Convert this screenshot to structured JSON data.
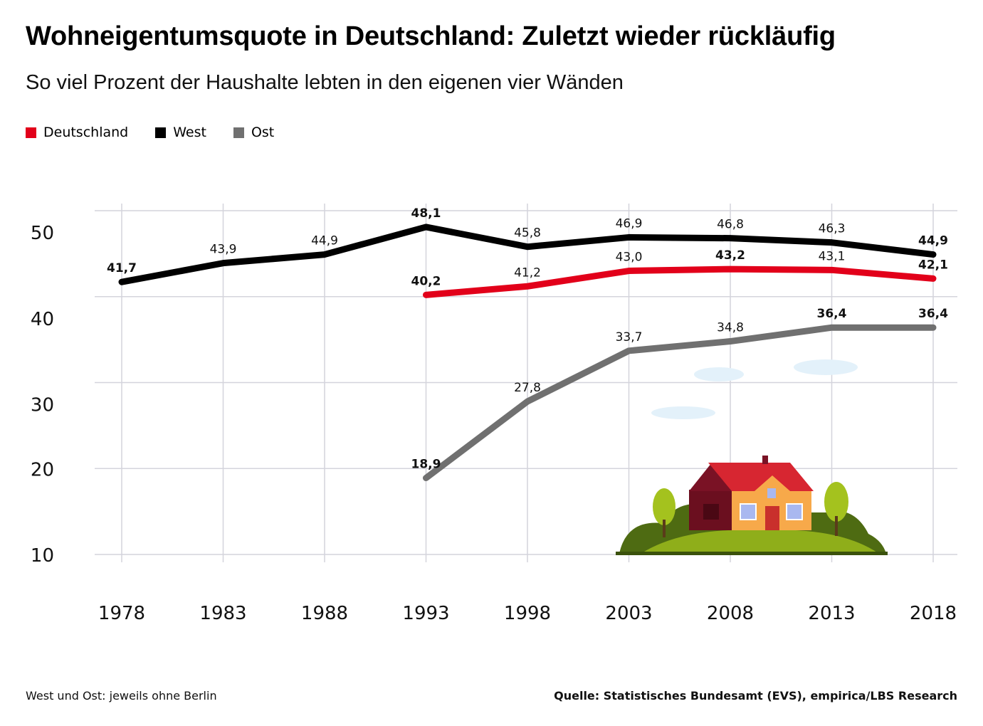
{
  "title": "Wohneigentumsquote in Deutschland: Zuletzt wieder rückläufig",
  "subtitle": "So viel Prozent der Haushalte lebten in den eigenen vier Wänden",
  "note": "West und Ost: jeweils ohne Berlin",
  "source": "Quelle: Statistisches Bundesamt (EVS), empirica/LBS Research",
  "chart_data": {
    "type": "line",
    "x": [
      "1978",
      "1983",
      "1988",
      "1993",
      "1998",
      "2003",
      "2008",
      "2013",
      "2018"
    ],
    "yticks": [
      "50",
      "40",
      "30",
      "20",
      "10"
    ],
    "ylim": [
      10,
      50
    ],
    "grid": true,
    "legend_placement": "top-left",
    "series": [
      {
        "name": "Deutschland",
        "color": "#e2001a",
        "values": [
          null,
          null,
          null,
          40.2,
          41.2,
          43.0,
          43.2,
          43.1,
          42.1
        ],
        "labels": [
          null,
          null,
          null,
          "40,2",
          "41,2",
          "43,0",
          "43,2",
          "43,1",
          "42,1"
        ],
        "bold": [
          false,
          false,
          false,
          true,
          false,
          false,
          true,
          false,
          true
        ]
      },
      {
        "name": "West",
        "color": "#000000",
        "values": [
          41.7,
          43.9,
          44.9,
          48.1,
          45.8,
          46.9,
          46.8,
          46.3,
          44.9
        ],
        "labels": [
          "41,7",
          "43,9",
          "44,9",
          "48,1",
          "45,8",
          "46,9",
          "46,8",
          "46,3",
          "44,9"
        ],
        "bold": [
          true,
          false,
          false,
          true,
          false,
          false,
          false,
          false,
          true
        ]
      },
      {
        "name": "Ost",
        "color": "#707070",
        "values": [
          null,
          null,
          null,
          18.9,
          27.8,
          33.7,
          34.8,
          36.4,
          36.4
        ],
        "labels": [
          null,
          null,
          null,
          "18,9",
          "27,8",
          "33,7",
          "34,8",
          "36,4",
          "36,4"
        ],
        "bold": [
          false,
          false,
          false,
          true,
          false,
          false,
          false,
          true,
          true
        ]
      }
    ]
  }
}
